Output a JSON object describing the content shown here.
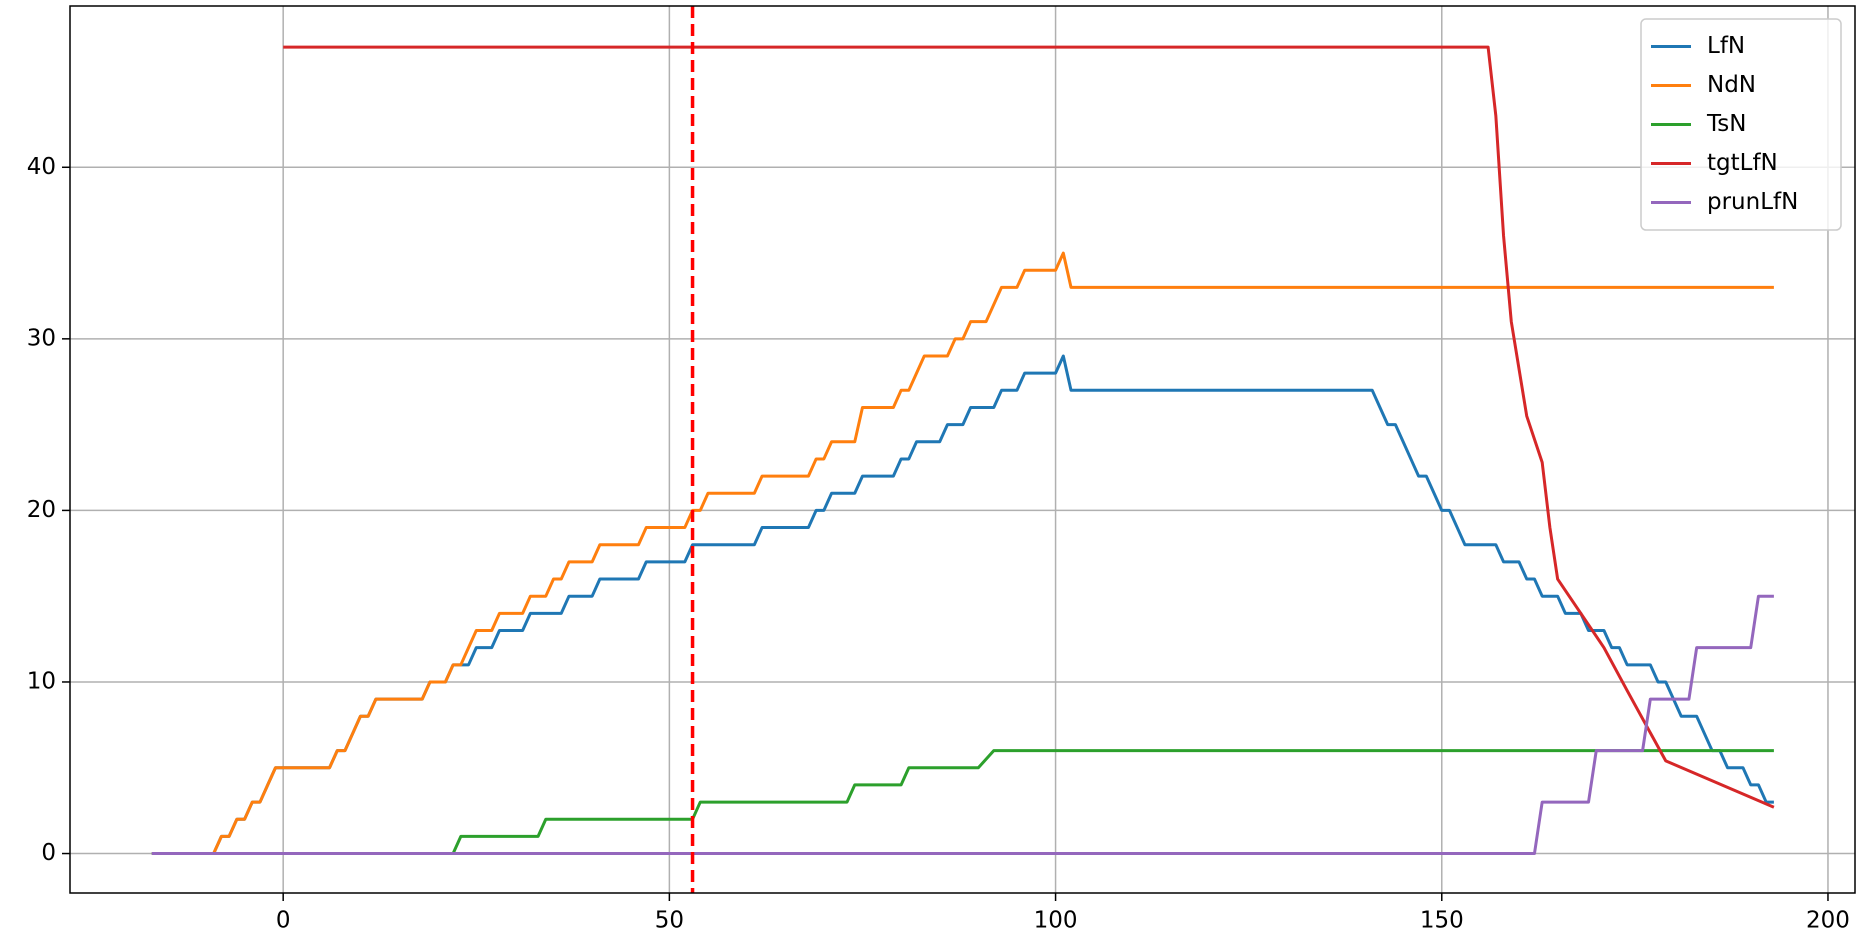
{
  "chart_data": {
    "type": "line",
    "xlim": [
      -27.6,
      203.5
    ],
    "ylim": [
      -2.3,
      49.4
    ],
    "xticks": [
      0,
      50,
      100,
      150,
      200
    ],
    "yticks": [
      0,
      10,
      20,
      30,
      40
    ],
    "grid": true,
    "legend": "upper right",
    "vline": {
      "x": 53,
      "color": "#ff0000"
    },
    "series": [
      {
        "name": "LfN",
        "color": "#1f77b4",
        "x": [
          -17,
          -9,
          -8,
          -7,
          -6,
          -5,
          -4,
          -3,
          -2,
          -1,
          6,
          7,
          8,
          9,
          10,
          11,
          12,
          18,
          19,
          21,
          22,
          24,
          25,
          27,
          28,
          31,
          32,
          36,
          37,
          40,
          41,
          46,
          47,
          52,
          53,
          61,
          62,
          68,
          69,
          70,
          71,
          74,
          75,
          79,
          80,
          81,
          82,
          85,
          86,
          88,
          89,
          92,
          93,
          95,
          96,
          100,
          101,
          102,
          141,
          142,
          143,
          144,
          145,
          146,
          147,
          148,
          149,
          150,
          151,
          152,
          153,
          157,
          158,
          160,
          161,
          162,
          163,
          165,
          166,
          168,
          169,
          171,
          172,
          173,
          174,
          177,
          178,
          179,
          180,
          181,
          183,
          184,
          185,
          186,
          187,
          189,
          190,
          191,
          192,
          193
        ],
        "values": [
          0,
          0,
          1,
          1,
          2,
          2,
          3,
          3,
          4,
          5,
          5,
          6,
          6,
          7,
          8,
          8,
          9,
          9,
          10,
          10,
          11,
          11,
          12,
          12,
          13,
          13,
          14,
          14,
          15,
          15,
          16,
          16,
          17,
          17,
          18,
          18,
          19,
          19,
          20,
          20,
          21,
          21,
          22,
          22,
          23,
          23,
          24,
          24,
          25,
          25,
          26,
          26,
          27,
          27,
          28,
          28,
          29,
          27,
          27,
          26,
          25,
          25,
          24,
          23,
          22,
          22,
          21,
          20,
          20,
          19,
          18,
          18,
          17,
          17,
          16,
          16,
          15,
          15,
          14,
          14,
          13,
          13,
          12,
          12,
          11,
          11,
          10,
          10,
          9,
          8,
          8,
          7,
          6,
          6,
          5,
          5,
          4,
          4,
          3,
          3
        ]
      },
      {
        "name": "NdN",
        "color": "#ff7f0e",
        "x": [
          -17,
          -9,
          -8,
          -7,
          -6,
          -5,
          -4,
          -3,
          -2,
          -1,
          6,
          7,
          8,
          9,
          10,
          11,
          12,
          18,
          19,
          21,
          22,
          23,
          24,
          25,
          27,
          28,
          31,
          32,
          34,
          35,
          36,
          37,
          40,
          41,
          46,
          47,
          52,
          53,
          54,
          55,
          61,
          62,
          68,
          69,
          70,
          71,
          74,
          75,
          79,
          80,
          81,
          83,
          86,
          87,
          88,
          89,
          91,
          93,
          95,
          96,
          100,
          101,
          102,
          193
        ],
        "values": [
          0,
          0,
          1,
          1,
          2,
          2,
          3,
          3,
          4,
          5,
          5,
          6,
          6,
          7,
          8,
          8,
          9,
          9,
          10,
          10,
          11,
          11,
          12,
          13,
          13,
          14,
          14,
          15,
          15,
          16,
          16,
          17,
          17,
          18,
          18,
          19,
          19,
          20,
          20,
          21,
          21,
          22,
          22,
          23,
          23,
          24,
          24,
          26,
          26,
          27,
          27,
          29,
          29,
          30,
          30,
          31,
          31,
          33,
          33,
          34,
          34,
          35,
          33,
          33
        ]
      },
      {
        "name": "TsN",
        "color": "#2ca02c",
        "x": [
          -17,
          22,
          23,
          33,
          34,
          53,
          54,
          73,
          74,
          80,
          81,
          90,
          92,
          193
        ],
        "values": [
          0,
          0,
          1,
          1,
          2,
          2,
          3,
          3,
          4,
          4,
          5,
          5,
          6,
          6
        ]
      },
      {
        "name": "tgtLfN",
        "color": "#d62728",
        "x": [
          0,
          156,
          157,
          158,
          159,
          161,
          163,
          164,
          165,
          171,
          174,
          179,
          193
        ],
        "values": [
          47,
          47,
          43,
          36,
          31,
          25.5,
          22.8,
          19,
          16,
          12,
          9.5,
          5.4,
          2.7
        ]
      },
      {
        "name": "prunLfN",
        "color": "#9467bd",
        "x": [
          -17,
          162,
          163,
          169,
          170,
          176,
          177,
          182,
          183,
          190,
          191,
          193
        ],
        "values": [
          0,
          0,
          3,
          3,
          6,
          6,
          9,
          9,
          12,
          12,
          15,
          15
        ]
      }
    ]
  }
}
